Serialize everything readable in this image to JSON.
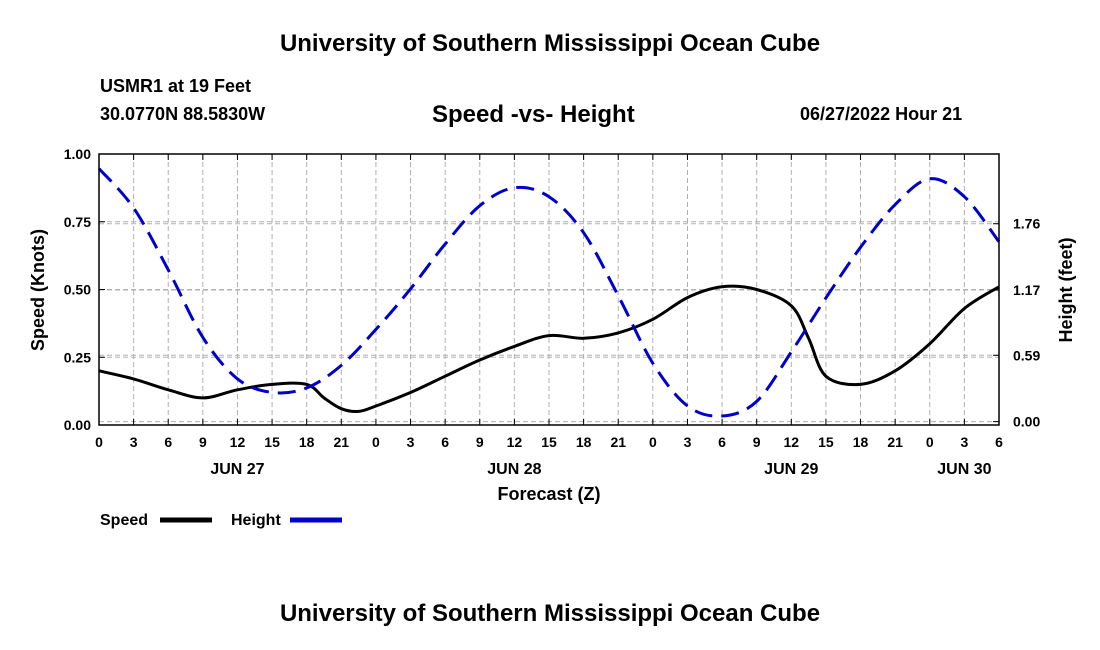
{
  "header": {
    "title": "University of Southern Mississippi Ocean Cube",
    "station": "USMR1 at 19 Feet",
    "coords": "30.0770N  88.5830W",
    "subtitle": "Speed -vs- Height",
    "datetime": "06/27/2022 Hour 21"
  },
  "footer": {
    "title": "University of Southern Mississippi Ocean Cube"
  },
  "chart_data": {
    "type": "line",
    "title": "Speed -vs- Height",
    "xlabel": "Forecast (Z)",
    "ylabel": "Speed (Knots)",
    "y2label": "Height (feet)",
    "x_tick_labels": [
      "0",
      "3",
      "6",
      "9",
      "12",
      "15",
      "18",
      "21",
      "0",
      "3",
      "6",
      "9",
      "12",
      "15",
      "18",
      "21",
      "0",
      "3",
      "6",
      "9",
      "12",
      "15",
      "18",
      "21",
      "0",
      "3",
      "6"
    ],
    "x_range": [
      0,
      78
    ],
    "date_labels": [
      {
        "label": "JUN 27",
        "x": 12
      },
      {
        "label": "JUN 28",
        "x": 36
      },
      {
        "label": "JUN 29",
        "x": 60
      },
      {
        "label": "JUN 30",
        "x": 75
      }
    ],
    "ylim": [
      0,
      1.0
    ],
    "y_ticks": [
      "0.00",
      "0.25",
      "0.50",
      "0.75",
      "1.00"
    ],
    "y_tick_values": [
      0,
      0.25,
      0.5,
      0.75,
      1.0
    ],
    "y2lim": [
      -0.03,
      2.38
    ],
    "y2_ticks": [
      "0.00",
      "0.59",
      "1.17",
      "1.76"
    ],
    "y2_tick_values": [
      0,
      0.59,
      1.17,
      1.76
    ],
    "series": [
      {
        "name": "Speed",
        "axis": "left",
        "color": "#000000",
        "style": "solid",
        "x": [
          0,
          3,
          6,
          9,
          12,
          15,
          18,
          19.5,
          21,
          22.5,
          24,
          27,
          30,
          33,
          36,
          39,
          42,
          45,
          48,
          51,
          54,
          57,
          60,
          61.5,
          63,
          66,
          69,
          72,
          75,
          78
        ],
        "values": [
          0.2,
          0.17,
          0.13,
          0.1,
          0.13,
          0.15,
          0.15,
          0.1,
          0.06,
          0.05,
          0.07,
          0.12,
          0.18,
          0.24,
          0.29,
          0.33,
          0.32,
          0.34,
          0.39,
          0.47,
          0.51,
          0.5,
          0.44,
          0.32,
          0.18,
          0.15,
          0.2,
          0.3,
          0.43,
          0.51
        ]
      },
      {
        "name": "Height",
        "axis": "right",
        "color": "#0000cc",
        "style": "dashed",
        "x": [
          0,
          3,
          6,
          9,
          12,
          15,
          18,
          21,
          24,
          27,
          30,
          33,
          36,
          39,
          42,
          45,
          48,
          51,
          54,
          57,
          60,
          63,
          66,
          69,
          72,
          75,
          78
        ],
        "values": [
          2.25,
          1.9,
          1.35,
          0.75,
          0.38,
          0.26,
          0.3,
          0.5,
          0.82,
          1.18,
          1.58,
          1.92,
          2.08,
          2.0,
          1.68,
          1.12,
          0.52,
          0.14,
          0.05,
          0.18,
          0.62,
          1.1,
          1.55,
          1.93,
          2.16,
          2.0,
          1.6
        ]
      }
    ],
    "legend": [
      {
        "label": "Speed",
        "color": "#000000",
        "style": "solid"
      },
      {
        "label": "Height",
        "color": "#0000cc",
        "style": "dashed"
      }
    ],
    "legend_position": "bottom-left",
    "grid": true
  }
}
